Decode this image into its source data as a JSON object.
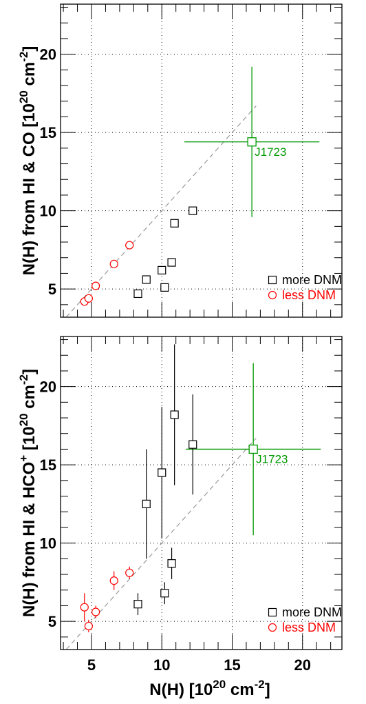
{
  "colors": {
    "more": "#000000",
    "less": "#ff0000",
    "highlight": "#009900",
    "grid": "#000000",
    "diag": "#999999"
  },
  "xaxis": {
    "title_main": "N(H) [10",
    "title_sup": "20",
    "title_mid": " cm",
    "title_sup2": "-2",
    "title_end": "]"
  },
  "chart_data": [
    {
      "type": "scatter",
      "xlim": [
        2.8,
        22.8
      ],
      "ylim": [
        3.2,
        23.2
      ],
      "xticks": [
        5,
        10,
        15,
        20
      ],
      "yticks": [
        5,
        10,
        15,
        20
      ],
      "grid": true,
      "ylabel_main": "N(H) from HI & CO [10",
      "ylabel_sup": "20",
      "ylabel_mid": " cm",
      "ylabel_sup2": "-2",
      "ylabel_end": "]",
      "more": {
        "label": "more DNM",
        "x": [
          8.3,
          8.9,
          10.0,
          10.2,
          10.7,
          10.9,
          12.2
        ],
        "y": [
          4.7,
          5.6,
          6.2,
          5.1,
          6.7,
          9.2,
          10.0
        ]
      },
      "less": {
        "label": "less DNM",
        "x": [
          4.5,
          4.8,
          5.3,
          6.6,
          7.7
        ],
        "y": [
          4.2,
          4.4,
          5.2,
          6.6,
          7.8
        ]
      },
      "highlight": {
        "label": "J1723",
        "x": 16.4,
        "y": 14.4,
        "xerr": [
          4.8,
          4.8
        ],
        "yerr": [
          4.8,
          4.8
        ]
      }
    },
    {
      "type": "scatter",
      "xlim": [
        2.8,
        22.8
      ],
      "ylim": [
        3.2,
        23.2
      ],
      "xticks": [
        5,
        10,
        15,
        20
      ],
      "yticks": [
        5,
        10,
        15,
        20
      ],
      "grid": true,
      "ylabel_main": "N(H) from HI & HCO",
      "ylabel_sup": "+",
      "ylabel_mid": " [10",
      "ylabel_sup2": "20",
      "ylabel_end": " cm",
      "ylabel_sup3": "-2",
      "ylabel_end2": "]",
      "more": {
        "label": "more DNM",
        "x": [
          8.3,
          8.9,
          10.0,
          10.2,
          10.7,
          10.9,
          12.2
        ],
        "y": [
          6.1,
          12.5,
          14.5,
          6.8,
          8.7,
          18.2,
          16.3
        ],
        "yerr": [
          0.7,
          3.5,
          4.2,
          0.7,
          1.0,
          4.5,
          3.2
        ]
      },
      "less": {
        "label": "less DNM",
        "x": [
          4.5,
          4.8,
          5.3,
          6.6,
          7.7
        ],
        "y": [
          5.9,
          4.7,
          5.6,
          7.6,
          8.1
        ],
        "yerr": [
          0.9,
          0.4,
          0.4,
          0.6,
          0.4
        ]
      },
      "highlight": {
        "label": "J1723",
        "x": 16.5,
        "y": 16.0,
        "xerr": [
          4.8,
          4.8
        ],
        "yerr": [
          5.5,
          5.5
        ]
      }
    }
  ]
}
